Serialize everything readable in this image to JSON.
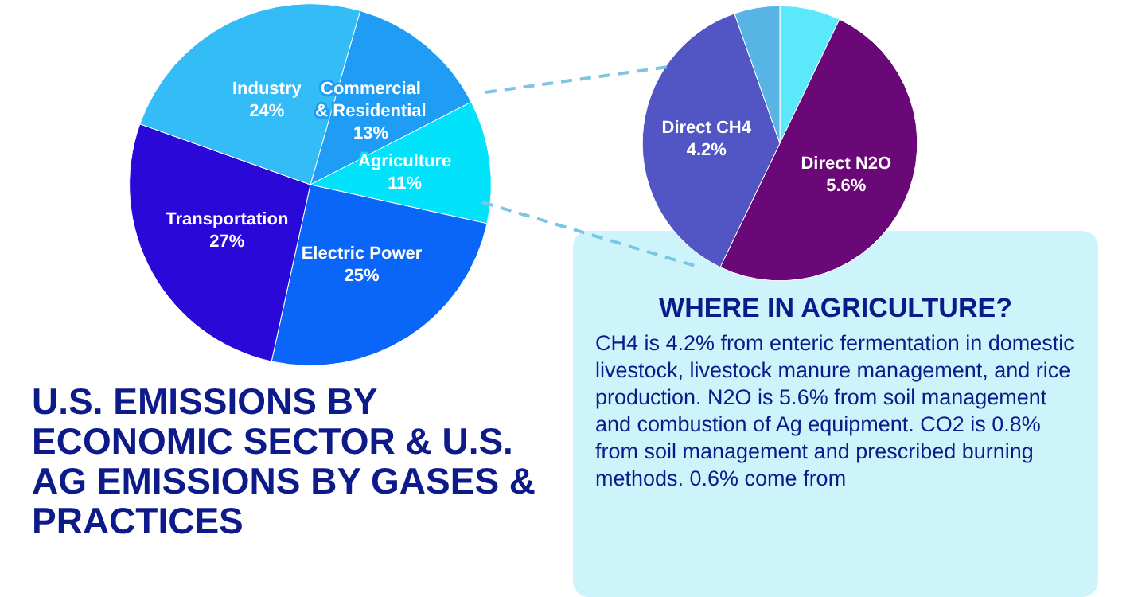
{
  "chart_data": [
    {
      "type": "pie",
      "title": "U.S. EMISSIONS BY ECONOMIC SECTOR & U.S. AG EMISSIONS BY GASES & PRACTICES",
      "categories": [
        "Commercial & Residential",
        "Agriculture",
        "Electric Power",
        "Transportation",
        "Industry"
      ],
      "values": [
        13,
        11,
        25,
        27,
        24
      ],
      "value_labels": [
        "13%",
        "11%",
        "25%",
        "27%",
        "24%"
      ],
      "colors": [
        "#1f9cf4",
        "#00e3fb",
        "#0a66f8",
        "#2a08d8",
        "#33bcf6"
      ]
    },
    {
      "type": "pie",
      "title": "WHERE IN AGRICULTURE?",
      "categories": [
        null,
        "Direct N2O",
        "Direct CH4",
        null
      ],
      "values": [
        0.8,
        5.6,
        4.2,
        0.6
      ],
      "value_labels": [
        null,
        "5.6%",
        "4.2%",
        null
      ],
      "colors": [
        "#5ce8fb",
        "#6a0878",
        "#5255c4",
        "#58b4e4"
      ],
      "annotations": [
        "CH4 is 4.2% from enteric fermentation in domestic livestock, livestock manure management, and rice production. N2O is 5.6% from soil management and combustion of Ag equipment. CO2 is 0.8% from soil management and prescribed burning methods. 0.6% come from"
      ]
    }
  ]
}
